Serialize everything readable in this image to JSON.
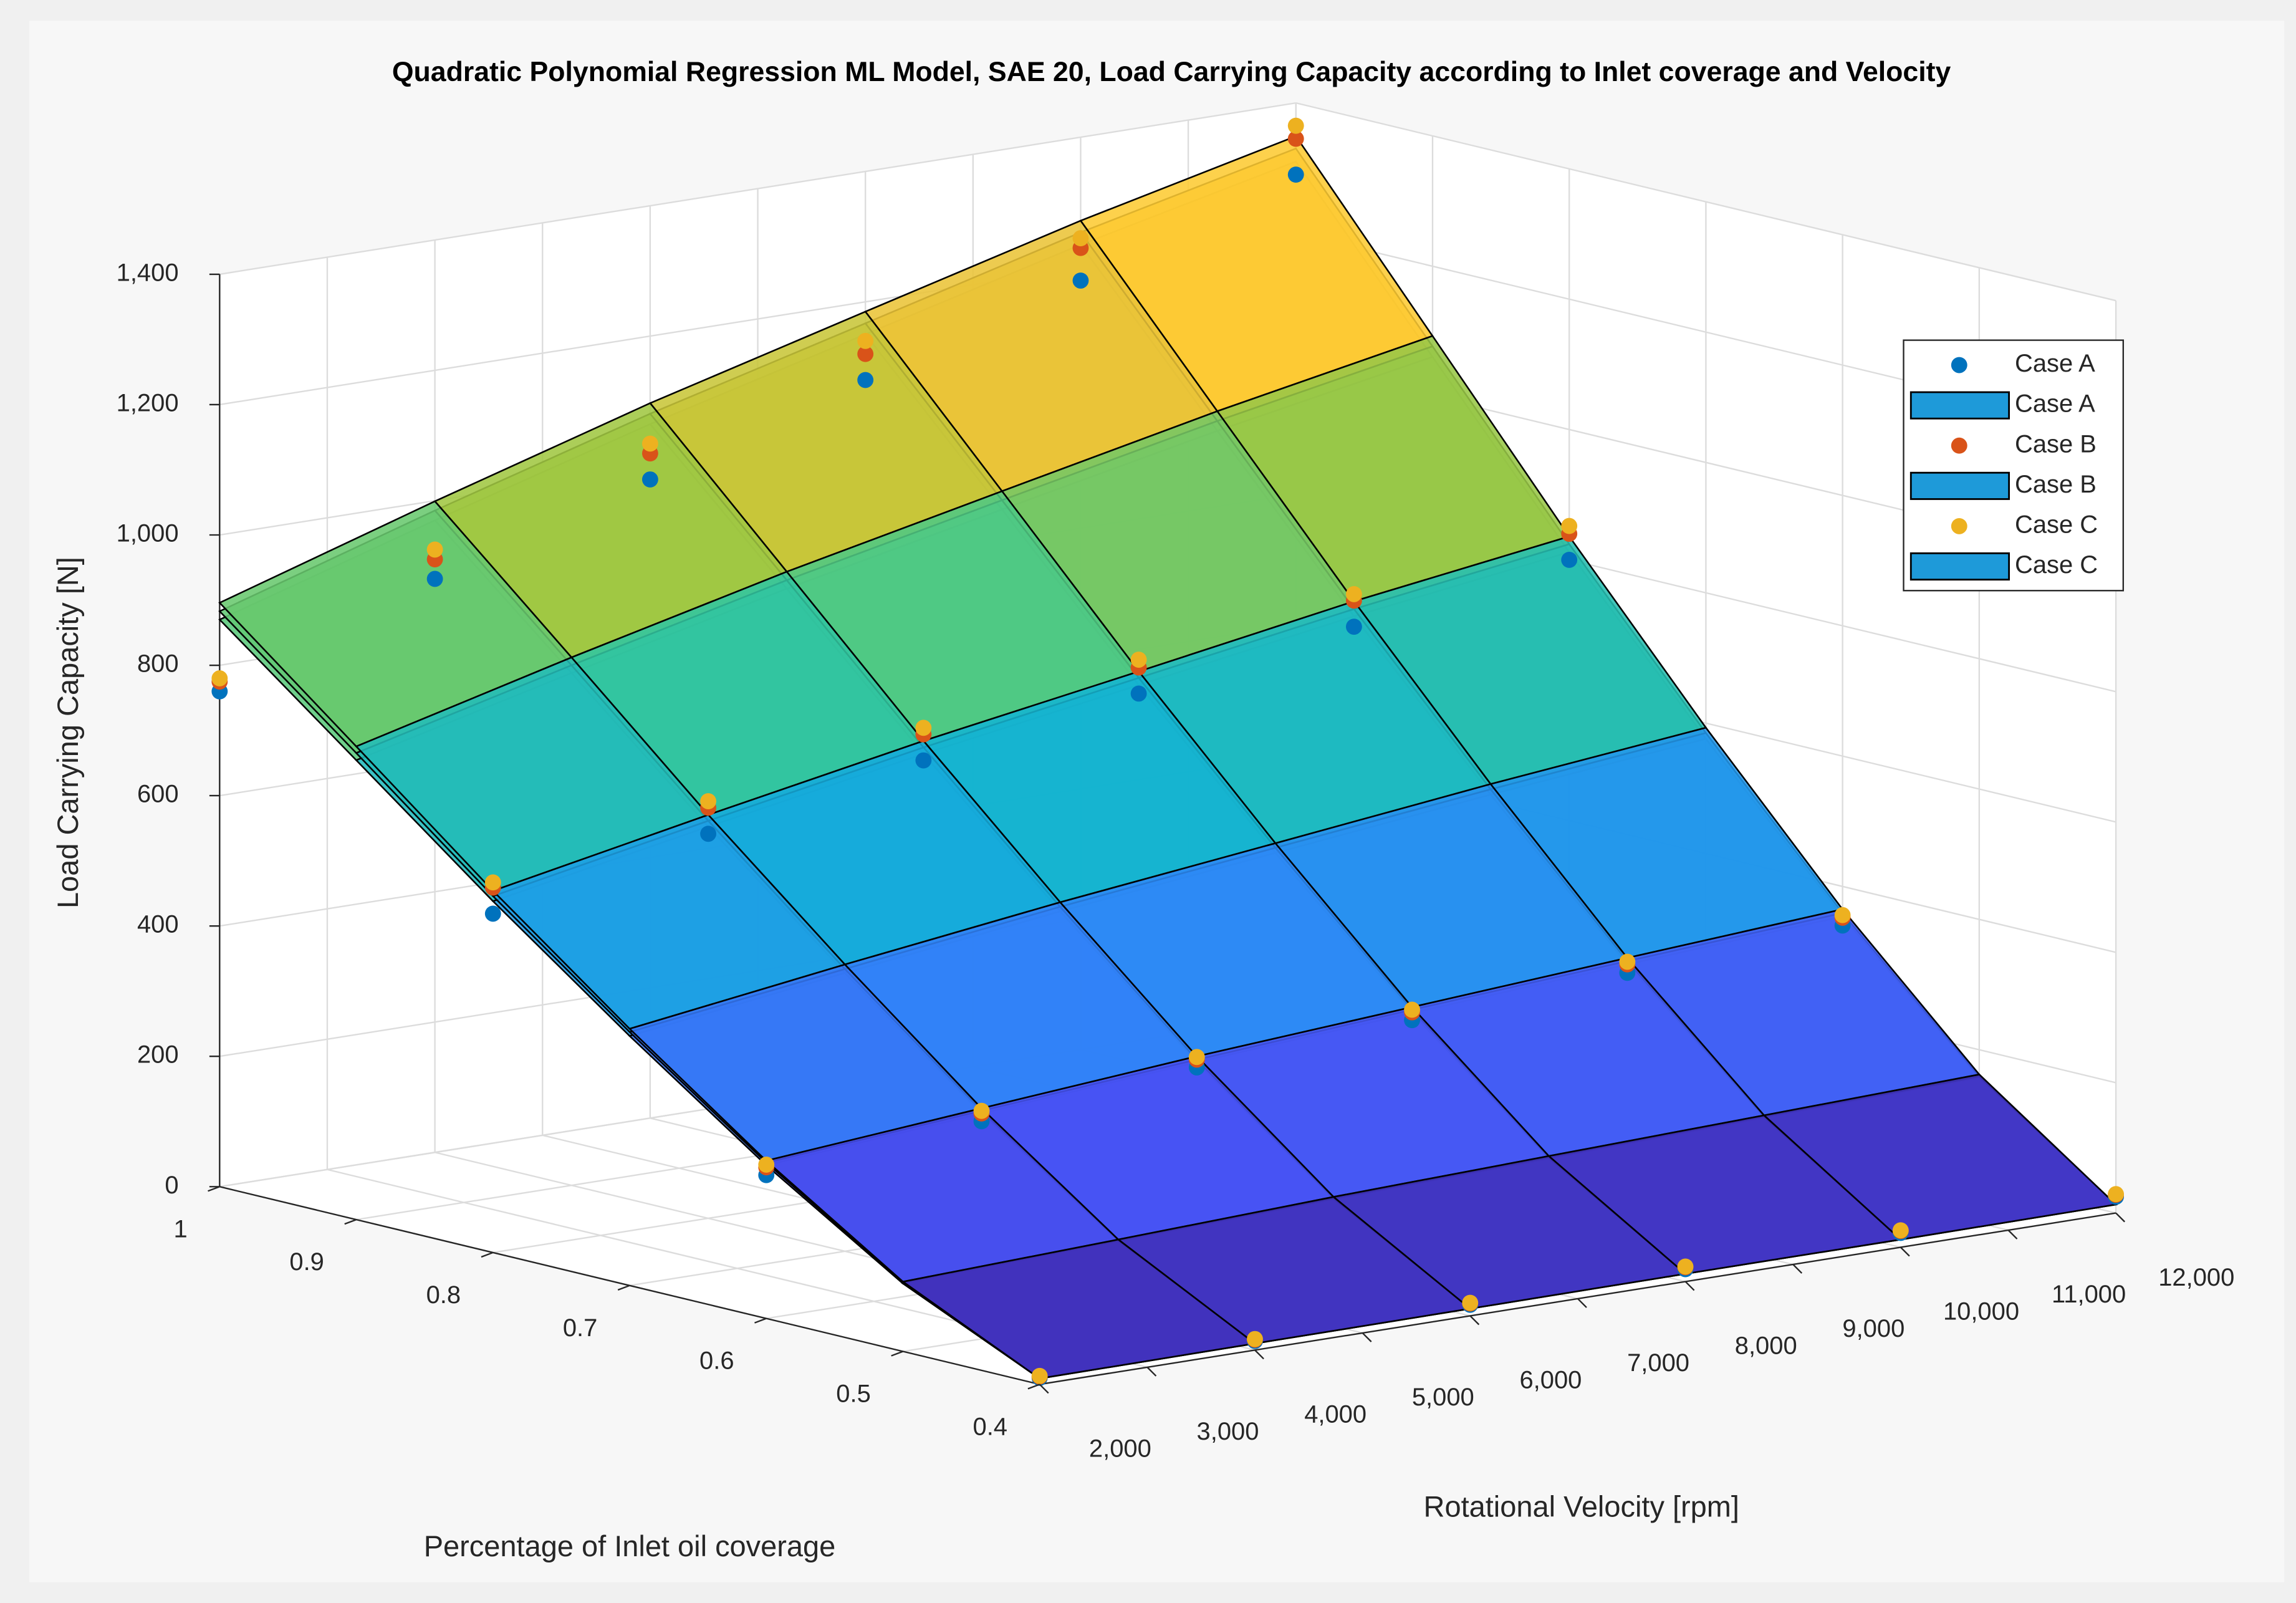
{
  "chart_data": {
    "type": "surface3d",
    "title": "Quadratic Polynomial Regression ML Model, SAE 20, Load Carrying Capacity according to Inlet coverage and Velocity",
    "xlabel": "Rotational Velocity [rpm]",
    "ylabel": "Percentage of Inlet oil coverage",
    "zlabel": "Load Carrying Capacity [N]",
    "xlim": [
      2000,
      12000
    ],
    "ylim": [
      0.4,
      1
    ],
    "zlim": [
      0,
      1400
    ],
    "xticks": [
      {
        "value": 2000,
        "label": "2,000"
      },
      {
        "value": 3000,
        "label": "3,000"
      },
      {
        "value": 4000,
        "label": "4,000"
      },
      {
        "value": 5000,
        "label": "5,000"
      },
      {
        "value": 6000,
        "label": "6,000"
      },
      {
        "value": 7000,
        "label": "7,000"
      },
      {
        "value": 8000,
        "label": "8,000"
      },
      {
        "value": 9000,
        "label": "9,000"
      },
      {
        "value": 10000,
        "label": "10,000"
      },
      {
        "value": 11000,
        "label": "11,000"
      },
      {
        "value": 12000,
        "label": "12,000"
      }
    ],
    "yticks": [
      0.4,
      0.5,
      0.6,
      0.7,
      0.8,
      0.9,
      1
    ],
    "zticks": [
      0,
      200,
      400,
      600,
      800,
      {
        "value": 1000,
        "label": "1,000"
      },
      {
        "value": 1200,
        "label": "1,200"
      },
      {
        "value": 1400,
        "label": "1,400"
      }
    ],
    "grid": true,
    "legend": "northeast",
    "surface_x": [
      2000,
      4000,
      6000,
      8000,
      10000,
      12000
    ],
    "surface_y": [
      0.4,
      0.5,
      0.6,
      0.7,
      0.8,
      0.9,
      1
    ],
    "points_x": [
      2000,
      4000,
      6000,
      8000,
      10000,
      12000,
      2000,
      4000,
      6000,
      8000,
      10000,
      12000,
      2000,
      4000,
      6000,
      8000,
      10000,
      12000,
      2000,
      4000,
      6000,
      8000,
      10000,
      12000
    ],
    "points_y": [
      0.4,
      0.4,
      0.4,
      0.4,
      0.4,
      0.4,
      0.6,
      0.6,
      0.6,
      0.6,
      0.6,
      0.6,
      0.8,
      0.8,
      0.8,
      0.8,
      0.8,
      0.8,
      1,
      1,
      1,
      1,
      1,
      1
    ],
    "series": [
      {
        "name": "Case A",
        "kind": "scatter",
        "color": "#0072bd",
        "values": [
          10,
          14,
          17,
          19,
          22,
          25,
          220,
          250,
          280,
          300,
          320,
          340,
          520,
          590,
          650,
          700,
          750,
          800,
          760,
          880,
          980,
          1080,
          1180,
          1290
        ]
      },
      {
        "name": "Case A",
        "kind": "surface",
        "color": "#1e9ad9",
        "z": [
          [
            9,
            10,
            11,
            12,
            12,
            13
          ],
          [
            104,
            116,
            128,
            138,
            148,
            157
          ],
          [
            235,
            262,
            288,
            311,
            333,
            354
          ],
          [
            383,
            427,
            469,
            506,
            543,
            576
          ],
          [
            539,
            601,
            660,
            713,
            766,
            812
          ],
          [
            705,
            786,
            863,
            932,
            1000,
            1061
          ],
          [
            870,
            970,
            1065,
            1150,
            1235,
            1310
          ]
        ]
      },
      {
        "name": "Case B",
        "kind": "scatter",
        "color": "#d95319",
        "values": [
          12,
          16,
          19,
          22,
          25,
          28,
          232,
          262,
          292,
          312,
          333,
          352,
          560,
          630,
          690,
          740,
          790,
          840,
          775,
          910,
          1020,
          1120,
          1230,
          1345
        ]
      },
      {
        "name": "Case B",
        "kind": "surface",
        "color": "#1e9ad9",
        "z": [
          [
            9,
            10,
            11,
            12,
            12,
            13
          ],
          [
            106,
            118,
            130,
            140,
            150,
            159
          ],
          [
            239,
            266,
            292,
            316,
            338,
            359
          ],
          [
            389,
            433,
            476,
            514,
            551,
            585
          ],
          [
            547,
            610,
            670,
            724,
            777,
            824
          ],
          [
            716,
            798,
            876,
            946,
            1015,
            1077
          ],
          [
            883,
            985,
            1081,
            1167,
            1254,
            1330
          ]
        ]
      },
      {
        "name": "Case C",
        "kind": "scatter",
        "color": "#edb120",
        "values": [
          13,
          17,
          20,
          23,
          26,
          29,
          236,
          266,
          296,
          316,
          337,
          356,
          568,
          640,
          700,
          752,
          800,
          852,
          780,
          925,
          1035,
          1140,
          1245,
          1365
        ]
      },
      {
        "name": "Case C",
        "kind": "surface",
        "color": "#1e9ad9",
        "z": [
          [
            9,
            10,
            11,
            12,
            12,
            13
          ],
          [
            107,
            119,
            132,
            142,
            152,
            162
          ],
          [
            242,
            270,
            297,
            320,
            343,
            365
          ],
          [
            394,
            440,
            483,
            521,
            559,
            593
          ],
          [
            555,
            619,
            680,
            734,
            789,
            836
          ],
          [
            726,
            810,
            889,
            960,
            1030,
            1093
          ],
          [
            896,
            999,
            1097,
            1185,
            1272,
            1349
          ]
        ]
      }
    ]
  }
}
